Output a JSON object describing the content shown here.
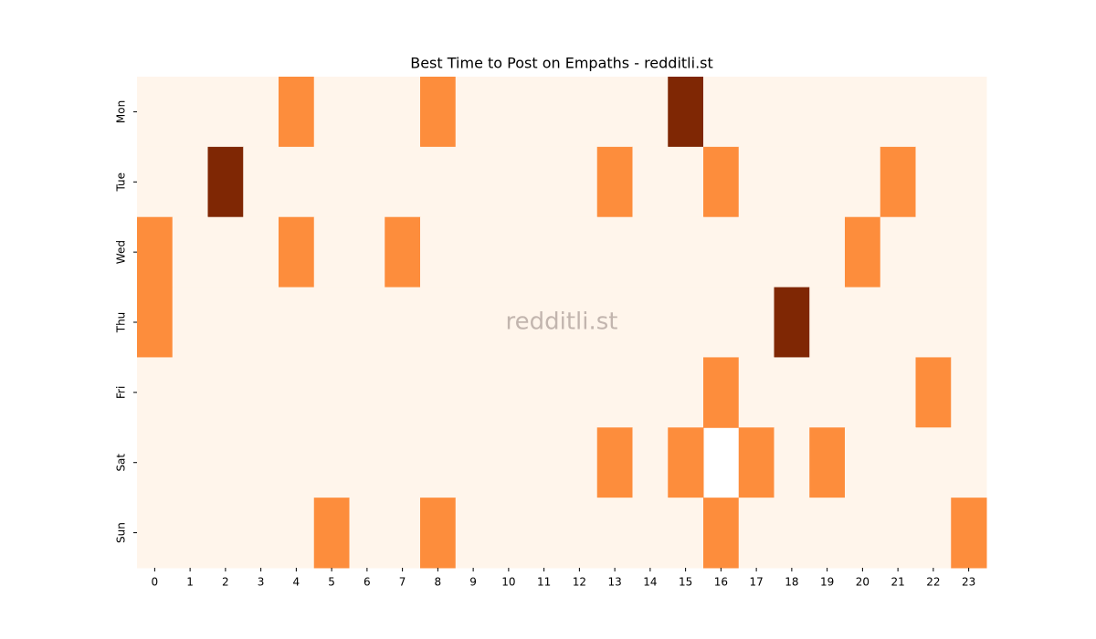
{
  "chart_data": {
    "type": "heatmap",
    "title": "Best Time to Post on Empaths - redditli.st",
    "watermark": "redditli.st",
    "x": [
      0,
      1,
      2,
      3,
      4,
      5,
      6,
      7,
      8,
      9,
      10,
      11,
      12,
      13,
      14,
      15,
      16,
      17,
      18,
      19,
      20,
      21,
      22,
      23
    ],
    "y": [
      "Mon",
      "Tue",
      "Wed",
      "Thu",
      "Fri",
      "Sat",
      "Sun"
    ],
    "values": [
      [
        0,
        0,
        0,
        0,
        1,
        0,
        0,
        0,
        1,
        0,
        0,
        0,
        0,
        0,
        0,
        2,
        0,
        0,
        0,
        0,
        0,
        0,
        0,
        0
      ],
      [
        0,
        0,
        2,
        0,
        0,
        0,
        0,
        0,
        0,
        0,
        0,
        0,
        0,
        1,
        0,
        0,
        1,
        0,
        0,
        0,
        0,
        1,
        0,
        0
      ],
      [
        1,
        0,
        0,
        0,
        1,
        0,
        0,
        1,
        0,
        0,
        0,
        0,
        0,
        0,
        0,
        0,
        0,
        0,
        0,
        0,
        1,
        0,
        0,
        0
      ],
      [
        1,
        0,
        0,
        0,
        0,
        0,
        0,
        0,
        0,
        0,
        0,
        0,
        0,
        0,
        0,
        0,
        0,
        0,
        2,
        0,
        0,
        0,
        0,
        0
      ],
      [
        0,
        0,
        0,
        0,
        0,
        0,
        0,
        0,
        0,
        0,
        0,
        0,
        0,
        0,
        0,
        0,
        1,
        0,
        0,
        0,
        0,
        0,
        1,
        0
      ],
      [
        0,
        0,
        0,
        0,
        0,
        0,
        0,
        0,
        0,
        0,
        0,
        0,
        0,
        1,
        0,
        1,
        null,
        1,
        0,
        1,
        0,
        0,
        0,
        0
      ],
      [
        0,
        0,
        0,
        0,
        0,
        1,
        0,
        0,
        1,
        0,
        0,
        0,
        0,
        0,
        0,
        0,
        1,
        0,
        0,
        0,
        0,
        0,
        0,
        1
      ]
    ],
    "colorscale": [
      "#fff5eb",
      "#fd8d3c",
      "#7f2704"
    ],
    "vlim": [
      0,
      2
    ]
  }
}
